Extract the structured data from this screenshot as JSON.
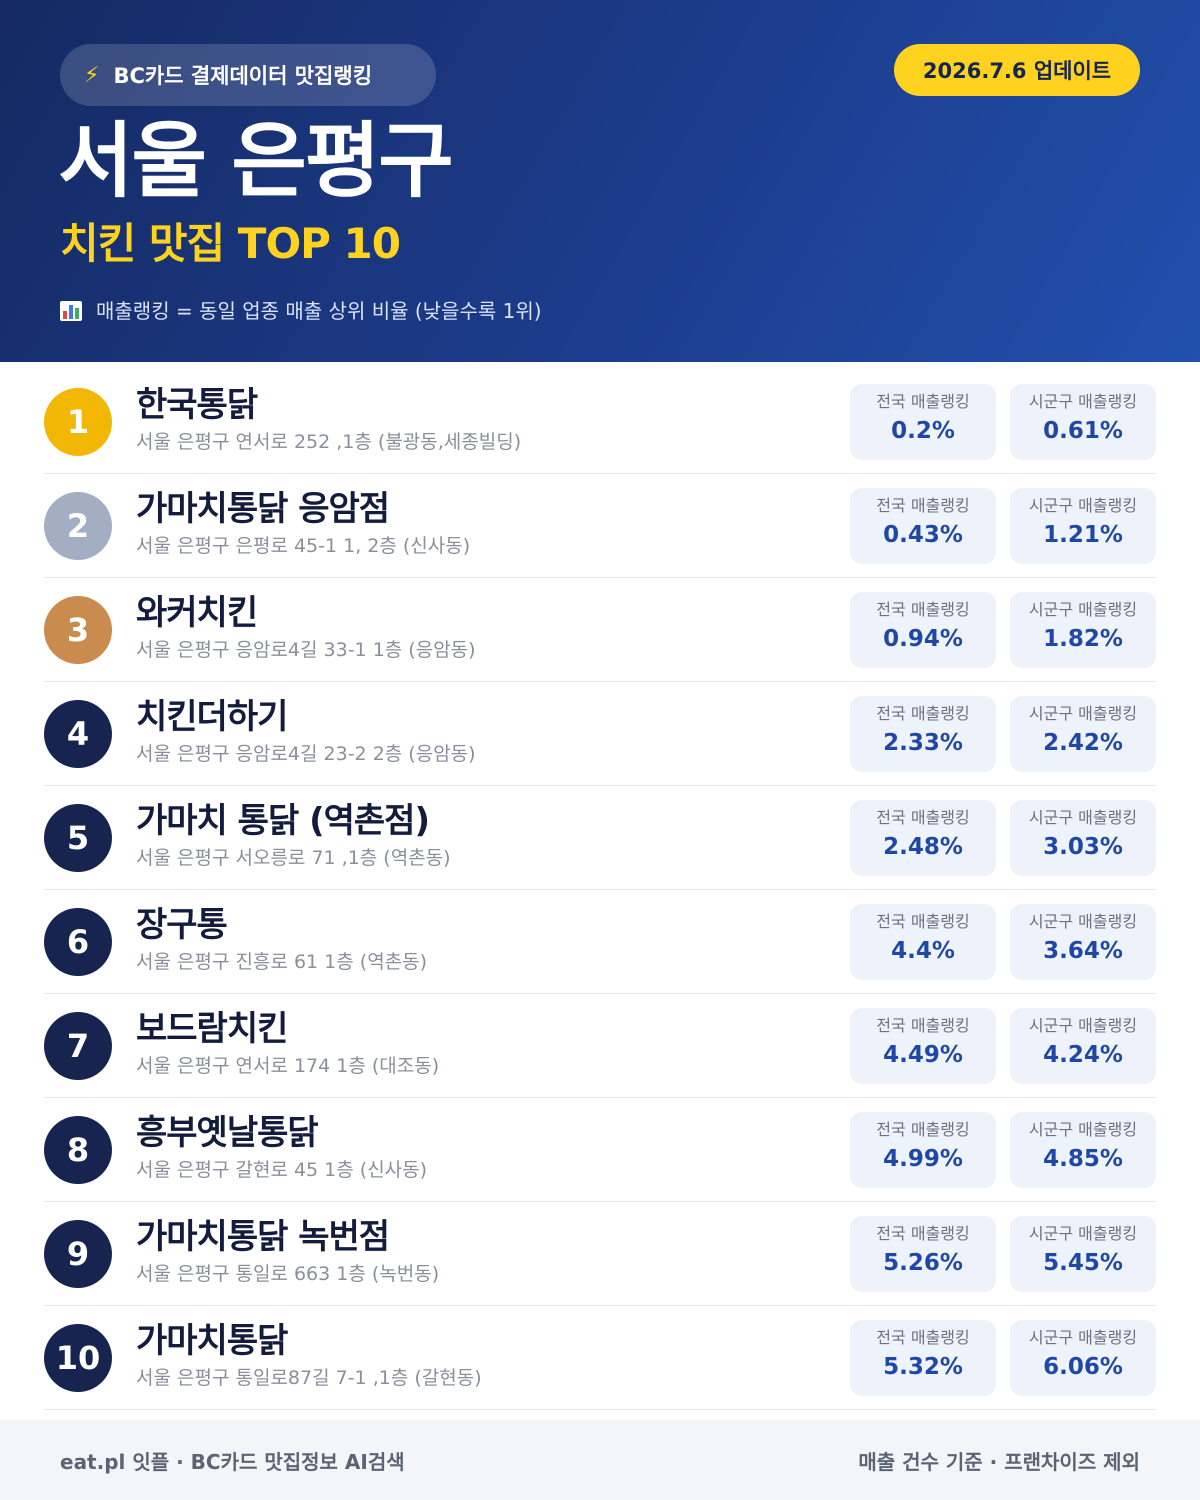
{
  "header": {
    "badge_icon": "lightning-icon",
    "badge_text": "BC카드 결제데이터 맛집랭킹",
    "update_label": "2026.7.6 업데이트",
    "title": "서울 은평구",
    "subtitle": "치킨 맛집 TOP 10",
    "note_icon": "bar-chart-icon",
    "note": "매출랭킹 = 동일 업종 매출 상위 비율 (낮을수록 1위)"
  },
  "labels": {
    "national": "전국 매출랭킹",
    "local": "시군구 매출랭킹"
  },
  "colors": {
    "gold": "#f2b705",
    "silver": "#a3aec3",
    "bronze": "#c98b4e",
    "navy": "#16244f",
    "accent_yellow": "#ffd21f",
    "value_blue": "#1f48a6"
  },
  "restaurants": [
    {
      "rank": "1",
      "name": "한국통닭",
      "address": "서울 은평구 연서로 252 ,1층 (불광동,세종빌딩)",
      "national": "0.2%",
      "local": "0.61%"
    },
    {
      "rank": "2",
      "name": "가마치통닭 응암점",
      "address": "서울 은평구 은평로 45-1 1, 2층 (신사동)",
      "national": "0.43%",
      "local": "1.21%"
    },
    {
      "rank": "3",
      "name": "와커치킨",
      "address": "서울 은평구 응암로4길 33-1 1층 (응암동)",
      "national": "0.94%",
      "local": "1.82%"
    },
    {
      "rank": "4",
      "name": "치킨더하기",
      "address": "서울 은평구 응암로4길 23-2 2층 (응암동)",
      "national": "2.33%",
      "local": "2.42%"
    },
    {
      "rank": "5",
      "name": "가마치 통닭 (역촌점)",
      "address": "서울 은평구 서오릉로 71 ,1층 (역촌동)",
      "national": "2.48%",
      "local": "3.03%"
    },
    {
      "rank": "6",
      "name": "장구통",
      "address": "서울 은평구 진흥로 61 1층 (역촌동)",
      "national": "4.4%",
      "local": "3.64%"
    },
    {
      "rank": "7",
      "name": "보드람치킨",
      "address": "서울 은평구 연서로 174 1층 (대조동)",
      "national": "4.49%",
      "local": "4.24%"
    },
    {
      "rank": "8",
      "name": "흥부옛날통닭",
      "address": "서울 은평구 갈현로 45 1층 (신사동)",
      "national": "4.99%",
      "local": "4.85%"
    },
    {
      "rank": "9",
      "name": "가마치통닭 녹번점",
      "address": "서울 은평구 통일로 663 1층 (녹번동)",
      "national": "5.26%",
      "local": "5.45%"
    },
    {
      "rank": "10",
      "name": "가마치통닭",
      "address": "서울 은평구 통일로87길 7-1 ,1층 (갈현동)",
      "national": "5.32%",
      "local": "6.06%"
    }
  ],
  "footer": {
    "left": "eat.pl 잇플 · BC카드 맛집정보 AI검색",
    "right": "매출 건수 기준 · 프랜차이즈 제외"
  }
}
